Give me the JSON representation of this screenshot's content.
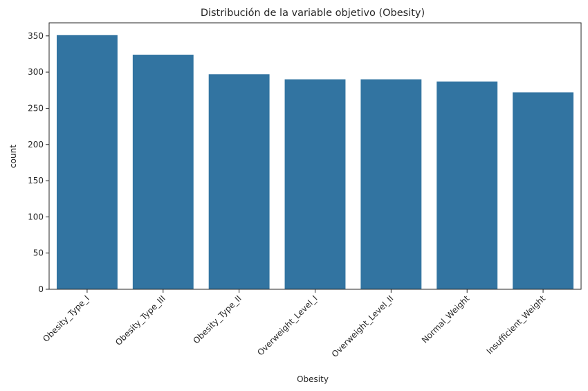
{
  "chart_data": {
    "type": "bar",
    "title": "Distribución de la variable objetivo (Obesity)",
    "xlabel": "Obesity",
    "ylabel": "count",
    "categories": [
      "Obesity_Type_I",
      "Obesity_Type_III",
      "Obesity_Type_II",
      "Overweight_Level_I",
      "Overweight_Level_II",
      "Normal_Weight",
      "Insufficient_Weight"
    ],
    "values": [
      351,
      324,
      297,
      290,
      290,
      287,
      272
    ],
    "ylim": [
      0,
      368
    ],
    "yticks": [
      0,
      50,
      100,
      150,
      200,
      250,
      300,
      350
    ],
    "bar_color": "#3274a1",
    "grid": false,
    "legend": "none"
  }
}
